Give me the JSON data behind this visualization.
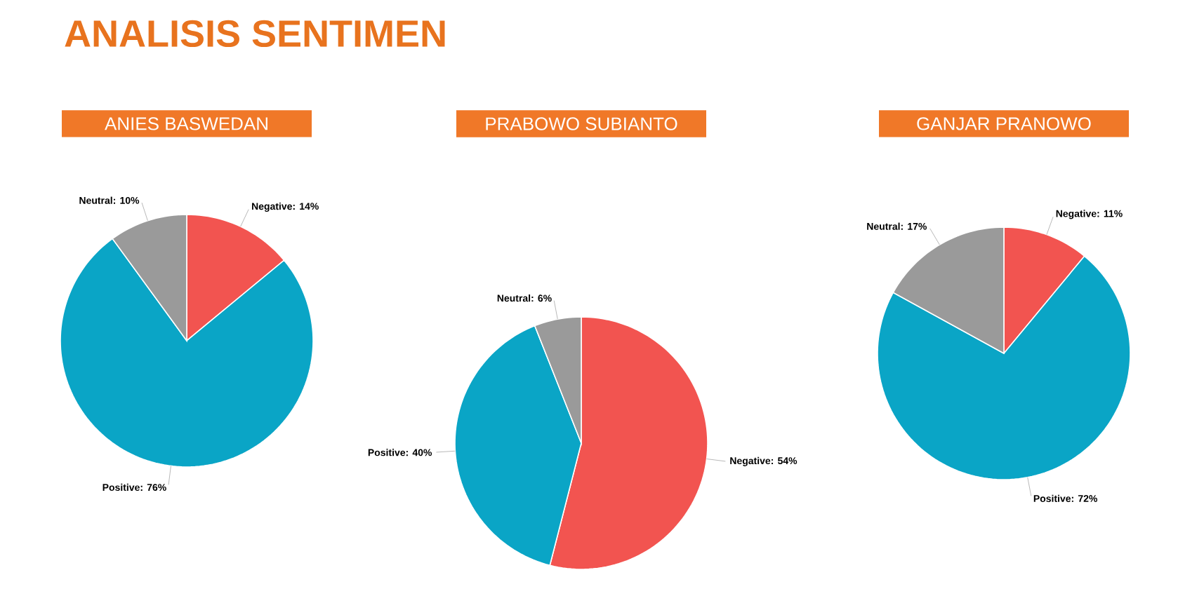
{
  "chart_data": [
    {
      "type": "pie",
      "title": "ANIES BASWEDAN",
      "annotations": [
        "ANALISIS SENTIMEN"
      ],
      "categories": [
        "Negative: 14%",
        "Positive: 76%",
        "Neutral: 10%"
      ],
      "values": [
        14,
        76,
        10
      ],
      "colors": [
        "#f25450",
        "#0aa5c6",
        "#9a9a9a"
      ]
    },
    {
      "type": "pie",
      "title": "PRABOWO SUBIANTO",
      "categories": [
        "Negative: 54%",
        "Positive: 40%",
        "Neutral: 6%"
      ],
      "values": [
        54,
        40,
        6
      ],
      "colors": [
        "#f25450",
        "#0aa5c6",
        "#9a9a9a"
      ]
    },
    {
      "type": "pie",
      "title": "GANJAR PRANOWO",
      "categories": [
        "Negative: 11%",
        "Positive: 72%",
        "Neutral: 17%"
      ],
      "values": [
        11,
        72,
        17
      ],
      "colors": [
        "#f25450",
        "#0aa5c6",
        "#9a9a9a"
      ]
    }
  ]
}
